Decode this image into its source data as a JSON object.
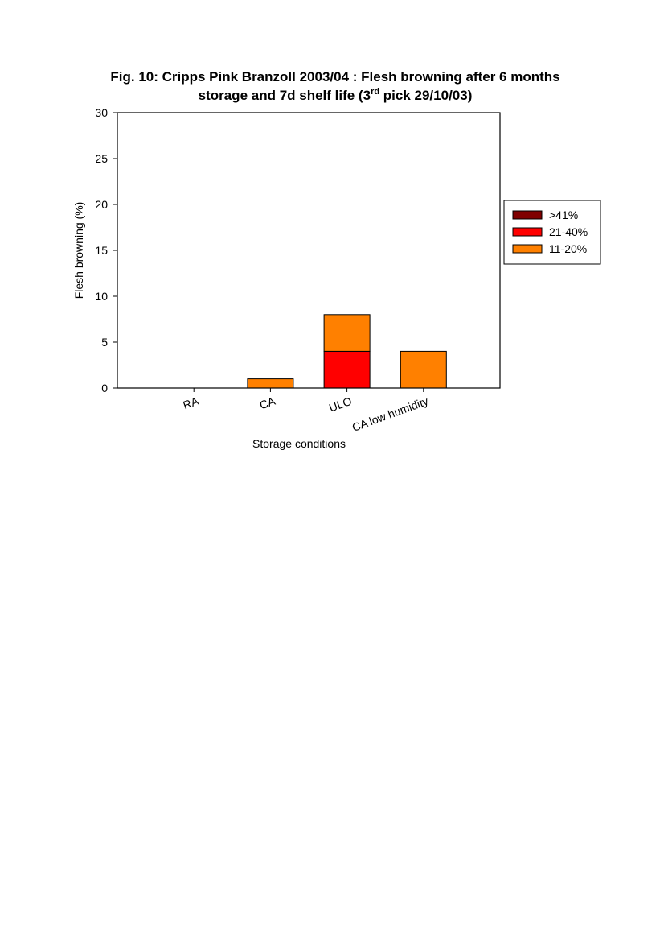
{
  "chart_data": {
    "type": "bar",
    "stacked": true,
    "title_line1": "Fig. 10: Cripps Pink Branzoll 2003/04 : Flesh browning after 6 months",
    "title_line2_prefix": "storage and 7d shelf life (3",
    "title_line2_sup": "rd",
    "title_line2_suffix": " pick 29/10/03)",
    "xlabel": "Storage conditions",
    "ylabel": "Flesh browning (%)",
    "ylim": [
      0,
      30
    ],
    "yticks": [
      0,
      5,
      10,
      15,
      20,
      25,
      30
    ],
    "categories": [
      "RA",
      "CA",
      "ULO",
      "CA low humidity"
    ],
    "series": [
      {
        "name": "11-20%",
        "color": "#ff8000",
        "values": [
          0,
          1,
          4,
          4
        ]
      },
      {
        "name": "21-40%",
        "color": "#ff0000",
        "values": [
          0,
          0,
          4,
          0
        ]
      },
      {
        "name": ">41%",
        "color": "#800000",
        "values": [
          0,
          0,
          0,
          0
        ]
      }
    ],
    "stack_order_bottom_to_top": [
      "21-40%",
      "11-20%",
      ">41%"
    ],
    "legend_order": [
      ">41%",
      "21-40%",
      "11-20%"
    ],
    "legend_position": "right",
    "grid": false
  }
}
